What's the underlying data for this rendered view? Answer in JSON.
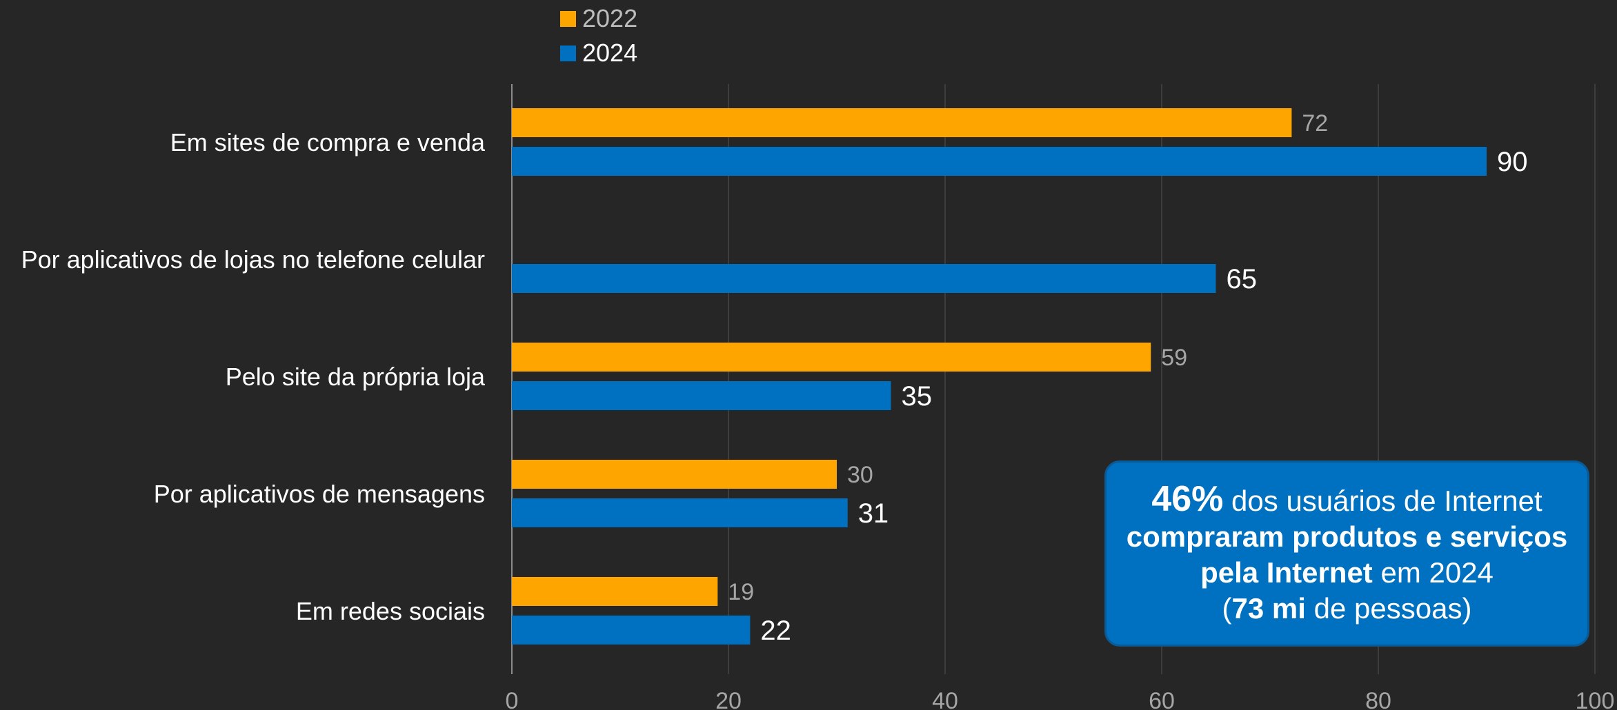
{
  "chart_data": {
    "type": "bar",
    "orientation": "horizontal",
    "categories": [
      "Em sites de compra e venda",
      "Por aplicativos de lojas no telefone celular",
      "Pelo site da própria loja",
      "Por aplicativos de mensagens",
      "Em redes sociais"
    ],
    "series": [
      {
        "name": "2022",
        "color": "#ffa500",
        "values": [
          72,
          null,
          59,
          30,
          19
        ],
        "labels": [
          "72",
          "",
          "59",
          "30",
          "19"
        ]
      },
      {
        "name": "2024",
        "color": "#0070c0",
        "values": [
          90,
          65,
          35,
          31,
          22
        ],
        "labels": [
          "90",
          "65",
          "35",
          "31",
          "22"
        ]
      }
    ],
    "xlim": [
      0,
      100
    ],
    "xticks": [
      0,
      20,
      40,
      60,
      80,
      100
    ],
    "xtick_labels": [
      "0",
      "20",
      "40",
      "60",
      "80",
      "100"
    ],
    "grid": true,
    "legend": "top"
  },
  "callout": {
    "pct": "46%",
    "t1": " dos usuários de Internet",
    "t2": "compraram produtos e serviços",
    "t3": "pela Internet",
    "t4": " em 2024",
    "t5": "(",
    "t6": "73 mi",
    "t7": " de pessoas)"
  },
  "colors": {
    "background": "#262626",
    "bar_2022": "#ffa500",
    "bar_2024": "#0070c0",
    "label_2022": "#a6a6a6",
    "label_2024": "#ffffff"
  }
}
